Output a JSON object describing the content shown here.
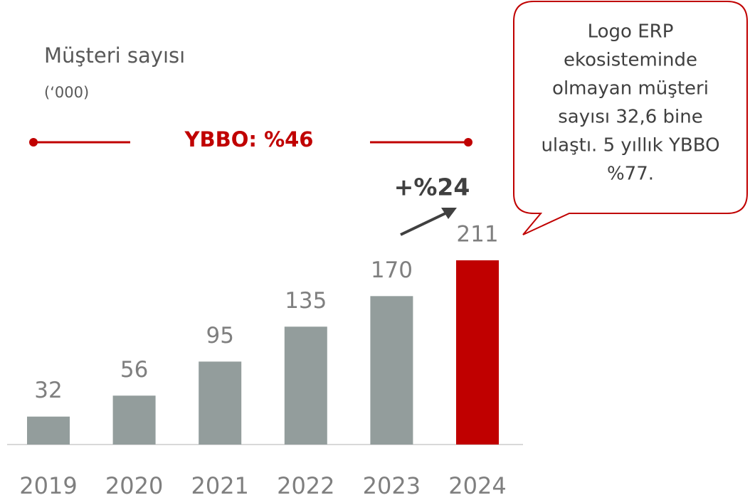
{
  "chart_data": {
    "type": "bar",
    "title": "Müşteri sayısı",
    "subtitle": "(‘000)",
    "categories": [
      "2019",
      "2020",
      "2021",
      "2022",
      "2023",
      "2024"
    ],
    "values": [
      32,
      56,
      95,
      135,
      170,
      211
    ],
    "colors": [
      "#939d9c",
      "#939d9c",
      "#939d9c",
      "#939d9c",
      "#939d9c",
      "#c00000"
    ],
    "annotations": {
      "cagr": "YBBO: %46",
      "growth": "+%24",
      "callout": [
        "Logo ERP",
        "ekosisteminde",
        "olmayan müşteri",
        "sayısı 32,6 bine",
        "ulaştı. 5 yıllık YBBO",
        "%77."
      ]
    }
  }
}
